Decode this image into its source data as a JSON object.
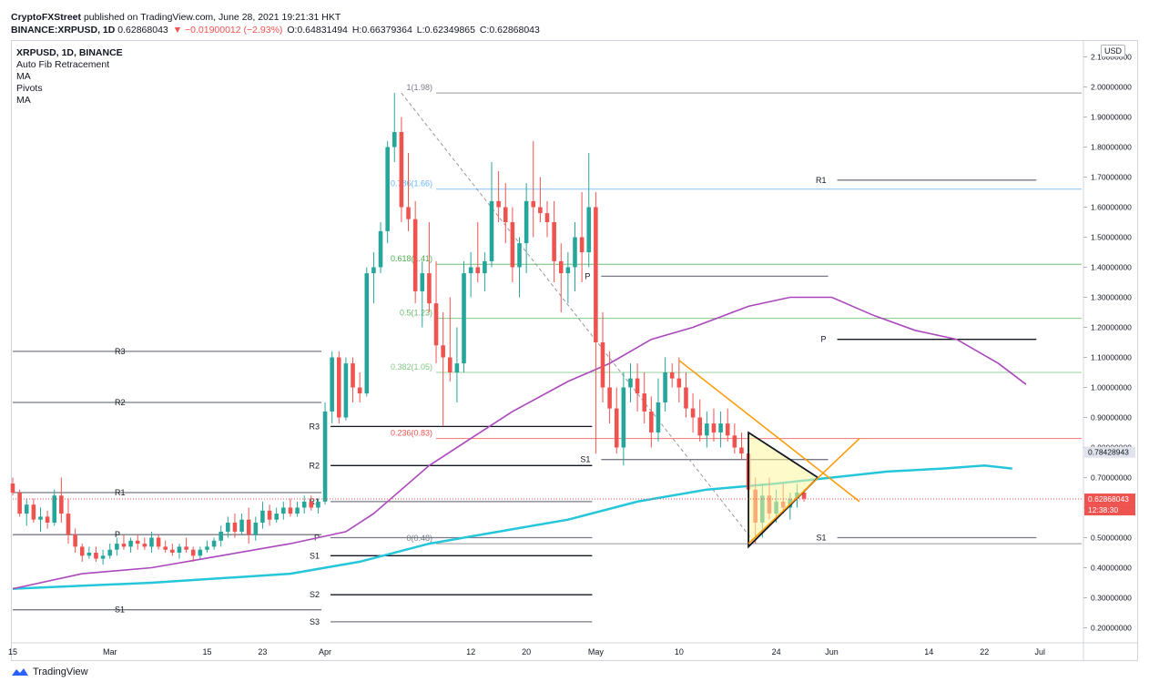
{
  "header": {
    "line1_prefix": "CryptoFXStreet",
    "line1_suffix": "published on TradingView.com, June 28, 2021 19:21:31 HKT",
    "symbol": "BINANCE:XRPUSD, 1D",
    "last": "0.62868043",
    "change": "▼ −0.01900012 (−2.93%)",
    "open": "O:0.64831494",
    "high": "H:0.66379364",
    "low": "L:0.62349865",
    "close": "C:0.62868043"
  },
  "legend": {
    "title": "XRPUSD, 1D, BINANCE",
    "items": [
      "Auto Fib Retracement",
      "MA",
      "Pivots",
      "MA"
    ]
  },
  "currency": "USD",
  "footer": {
    "brand": "TradingView"
  },
  "colors": {
    "up": "#26a69a",
    "down": "#ef5350",
    "ma_fast": "#ab47bc",
    "ma_slow": "#26c6da",
    "triangle_fill": "#fff59d",
    "orange_line": "#ff9800"
  },
  "chart_data": {
    "type": "candlestick",
    "y_axis": {
      "min": 0.15,
      "max": 2.15,
      "ticks": [
        "2.10000000",
        "2.00000000",
        "1.90000000",
        "1.80000000",
        "1.70000000",
        "1.60000000",
        "1.50000000",
        "1.40000000",
        "1.30000000",
        "1.20000000",
        "1.10000000",
        "1.00000000",
        "0.90000000",
        "0.80000000",
        "0.70000000",
        "0.60000000",
        "0.50000000",
        "0.40000000",
        "0.30000000",
        "0.20000000"
      ],
      "tick_values": [
        2.1,
        2.0,
        1.9,
        1.8,
        1.7,
        1.6,
        1.5,
        1.4,
        1.3,
        1.2,
        1.1,
        1.0,
        0.9,
        0.8,
        0.7,
        0.6,
        0.5,
        0.4,
        0.3,
        0.2
      ]
    },
    "x_axis": {
      "labels": [
        "15",
        "Mar",
        "15",
        "23",
        "Apr",
        "12",
        "20",
        "May",
        "10",
        "24",
        "Jun",
        "14",
        "22",
        "Jul"
      ],
      "label_days": [
        0,
        14,
        28,
        36,
        45,
        66,
        74,
        84,
        96,
        110,
        118,
        132,
        140,
        148
      ]
    },
    "price_labels": [
      {
        "value": 0.78428943,
        "text": "0.78428943",
        "bg": "#e0e3eb",
        "fg": "#131722"
      },
      {
        "value": 0.62868043,
        "text": "0.62868043",
        "bg": "#ef5350",
        "fg": "#ffffff"
      },
      {
        "value": 0.6,
        "text": "12:38:30",
        "bg": "#ef5350",
        "fg": "#ffffff"
      }
    ],
    "fib_levels": [
      {
        "label": "1(1.98)",
        "value": 1.98,
        "color": "#787b86"
      },
      {
        "label": "0.786(1.66)",
        "value": 1.66,
        "color": "#64b5f6"
      },
      {
        "label": "0.618(1.41)",
        "value": 1.41,
        "color": "#4caf50"
      },
      {
        "label": "0.5(1.23)",
        "value": 1.23,
        "color": "#66bb6a"
      },
      {
        "label": "0.382(1.05)",
        "value": 1.05,
        "color": "#81c784"
      },
      {
        "label": "0.236(0.83)",
        "value": 0.83,
        "color": "#ef5350"
      },
      {
        "label": "0(0.48)",
        "value": 0.48,
        "color": "#787b86"
      }
    ],
    "pivots": [
      {
        "label": "R3",
        "value": 1.12,
        "d0": 0,
        "d1": 45,
        "color": "#787b86"
      },
      {
        "label": "R2",
        "value": 0.95,
        "d0": 0,
        "d1": 45,
        "color": "#787b86"
      },
      {
        "label": "R1",
        "value": 0.65,
        "d0": 0,
        "d1": 45,
        "color": "#787b86"
      },
      {
        "label": "P",
        "value": 0.51,
        "d0": 0,
        "d1": 45,
        "color": "#787b86"
      },
      {
        "label": "S1",
        "value": 0.26,
        "d0": 0,
        "d1": 45,
        "color": "#787b86"
      },
      {
        "label": "R3",
        "value": 0.87,
        "d0": 45,
        "d1": 84,
        "color": "#131722"
      },
      {
        "label": "R2",
        "value": 0.74,
        "d0": 45,
        "d1": 84,
        "color": "#131722"
      },
      {
        "label": "R1",
        "value": 0.62,
        "d0": 45,
        "d1": 84,
        "color": "#787b86"
      },
      {
        "label": "P",
        "value": 0.5,
        "d0": 45,
        "d1": 84,
        "color": "#787b86"
      },
      {
        "label": "S1",
        "value": 0.44,
        "d0": 45,
        "d1": 84,
        "color": "#131722"
      },
      {
        "label": "S2",
        "value": 0.31,
        "d0": 45,
        "d1": 84,
        "color": "#131722"
      },
      {
        "label": "S3",
        "value": 0.22,
        "d0": 45,
        "d1": 84,
        "color": "#787b86"
      },
      {
        "label": "P",
        "value": 1.37,
        "d0": 84,
        "d1": 118,
        "color": "#787b86"
      },
      {
        "label": "S1",
        "value": 0.76,
        "d0": 84,
        "d1": 118,
        "color": "#787b86"
      },
      {
        "label": "R1",
        "value": 1.69,
        "d0": 118,
        "d1": 148,
        "color": "#787b86"
      },
      {
        "label": "P",
        "value": 1.16,
        "d0": 118,
        "d1": 148,
        "color": "#131722"
      },
      {
        "label": "S1",
        "value": 0.5,
        "d0": 118,
        "d1": 148,
        "color": "#787b86"
      }
    ],
    "ma_fast": [
      [
        0,
        0.33
      ],
      [
        10,
        0.38
      ],
      [
        20,
        0.4
      ],
      [
        30,
        0.44
      ],
      [
        40,
        0.48
      ],
      [
        48,
        0.52
      ],
      [
        52,
        0.58
      ],
      [
        56,
        0.66
      ],
      [
        60,
        0.74
      ],
      [
        66,
        0.83
      ],
      [
        72,
        0.92
      ],
      [
        80,
        1.02
      ],
      [
        86,
        1.08
      ],
      [
        92,
        1.16
      ],
      [
        98,
        1.2
      ],
      [
        106,
        1.27
      ],
      [
        112,
        1.3
      ],
      [
        118,
        1.3
      ],
      [
        124,
        1.24
      ],
      [
        130,
        1.19
      ],
      [
        136,
        1.16
      ],
      [
        142,
        1.08
      ],
      [
        146,
        1.01
      ]
    ],
    "ma_slow": [
      [
        0,
        0.33
      ],
      [
        20,
        0.35
      ],
      [
        40,
        0.38
      ],
      [
        50,
        0.42
      ],
      [
        60,
        0.48
      ],
      [
        70,
        0.52
      ],
      [
        80,
        0.56
      ],
      [
        90,
        0.62
      ],
      [
        100,
        0.66
      ],
      [
        110,
        0.68
      ],
      [
        118,
        0.7
      ],
      [
        126,
        0.72
      ],
      [
        134,
        0.73
      ],
      [
        140,
        0.74
      ],
      [
        144,
        0.73
      ]
    ],
    "candles": [
      [
        0,
        0.68,
        0.7,
        0.64,
        0.65
      ],
      [
        1,
        0.65,
        0.66,
        0.57,
        0.58
      ],
      [
        2,
        0.58,
        0.63,
        0.54,
        0.61
      ],
      [
        3,
        0.61,
        0.63,
        0.55,
        0.56
      ],
      [
        4,
        0.56,
        0.6,
        0.52,
        0.57
      ],
      [
        5,
        0.57,
        0.59,
        0.53,
        0.55
      ],
      [
        6,
        0.55,
        0.66,
        0.54,
        0.64
      ],
      [
        7,
        0.64,
        0.7,
        0.55,
        0.58
      ],
      [
        8,
        0.58,
        0.63,
        0.48,
        0.51
      ],
      [
        9,
        0.51,
        0.53,
        0.45,
        0.47
      ],
      [
        10,
        0.47,
        0.48,
        0.42,
        0.44
      ],
      [
        11,
        0.44,
        0.47,
        0.43,
        0.45
      ],
      [
        12,
        0.45,
        0.47,
        0.42,
        0.43
      ],
      [
        13,
        0.43,
        0.46,
        0.41,
        0.44
      ],
      [
        14,
        0.44,
        0.48,
        0.43,
        0.46
      ],
      [
        15,
        0.46,
        0.5,
        0.44,
        0.48
      ],
      [
        16,
        0.48,
        0.51,
        0.46,
        0.47
      ],
      [
        17,
        0.47,
        0.5,
        0.45,
        0.49
      ],
      [
        18,
        0.49,
        0.51,
        0.46,
        0.48
      ],
      [
        19,
        0.48,
        0.5,
        0.46,
        0.47
      ],
      [
        20,
        0.47,
        0.52,
        0.45,
        0.5
      ],
      [
        21,
        0.5,
        0.51,
        0.46,
        0.47
      ],
      [
        22,
        0.47,
        0.49,
        0.45,
        0.46
      ],
      [
        23,
        0.46,
        0.48,
        0.44,
        0.45
      ],
      [
        24,
        0.45,
        0.48,
        0.43,
        0.47
      ],
      [
        25,
        0.47,
        0.5,
        0.45,
        0.46
      ],
      [
        26,
        0.46,
        0.47,
        0.42,
        0.44
      ],
      [
        27,
        0.44,
        0.47,
        0.43,
        0.46
      ],
      [
        28,
        0.46,
        0.49,
        0.45,
        0.47
      ],
      [
        29,
        0.47,
        0.5,
        0.46,
        0.49
      ],
      [
        30,
        0.49,
        0.54,
        0.47,
        0.52
      ],
      [
        31,
        0.52,
        0.57,
        0.5,
        0.55
      ],
      [
        32,
        0.55,
        0.58,
        0.5,
        0.52
      ],
      [
        33,
        0.52,
        0.58,
        0.51,
        0.56
      ],
      [
        34,
        0.56,
        0.6,
        0.48,
        0.51
      ],
      [
        35,
        0.51,
        0.57,
        0.49,
        0.55
      ],
      [
        36,
        0.55,
        0.62,
        0.53,
        0.59
      ],
      [
        37,
        0.59,
        0.61,
        0.54,
        0.56
      ],
      [
        38,
        0.56,
        0.6,
        0.55,
        0.58
      ],
      [
        39,
        0.58,
        0.62,
        0.56,
        0.6
      ],
      [
        40,
        0.6,
        0.63,
        0.57,
        0.58
      ],
      [
        41,
        0.58,
        0.62,
        0.57,
        0.6
      ],
      [
        42,
        0.6,
        0.64,
        0.58,
        0.62
      ],
      [
        43,
        0.62,
        0.64,
        0.59,
        0.6
      ],
      [
        44,
        0.6,
        0.63,
        0.58,
        0.62
      ],
      [
        45,
        0.62,
        0.95,
        0.61,
        0.92
      ],
      [
        46,
        0.92,
        1.12,
        0.88,
        1.1
      ],
      [
        47,
        1.1,
        1.12,
        0.88,
        0.9
      ],
      [
        48,
        0.9,
        1.1,
        0.89,
        1.08
      ],
      [
        49,
        1.08,
        1.1,
        0.95,
        1.0
      ],
      [
        50,
        1.0,
        1.05,
        0.95,
        0.98
      ],
      [
        51,
        0.98,
        1.4,
        0.97,
        1.38
      ],
      [
        52,
        1.38,
        1.45,
        1.28,
        1.4
      ],
      [
        53,
        1.4,
        1.55,
        1.38,
        1.52
      ],
      [
        54,
        1.52,
        1.82,
        1.48,
        1.8
      ],
      [
        55,
        1.8,
        1.98,
        1.75,
        1.85
      ],
      [
        56,
        1.85,
        1.9,
        1.55,
        1.6
      ],
      [
        57,
        1.6,
        1.78,
        1.52,
        1.56
      ],
      [
        58,
        1.56,
        1.62,
        1.28,
        1.32
      ],
      [
        59,
        1.32,
        1.42,
        1.2,
        1.38
      ],
      [
        60,
        1.38,
        1.55,
        1.25,
        1.28
      ],
      [
        61,
        1.28,
        1.42,
        1.08,
        1.14
      ],
      [
        62,
        1.14,
        1.25,
        0.87,
        1.1
      ],
      [
        63,
        1.1,
        1.3,
        1.02,
        1.05
      ],
      [
        64,
        1.05,
        1.2,
        0.95,
        1.08
      ],
      [
        65,
        1.08,
        1.42,
        1.05,
        1.38
      ],
      [
        66,
        1.38,
        1.45,
        1.3,
        1.4
      ],
      [
        67,
        1.4,
        1.55,
        1.35,
        1.38
      ],
      [
        68,
        1.38,
        1.45,
        1.32,
        1.42
      ],
      [
        69,
        1.42,
        1.75,
        1.4,
        1.62
      ],
      [
        70,
        1.62,
        1.72,
        1.55,
        1.6
      ],
      [
        71,
        1.6,
        1.68,
        1.48,
        1.55
      ],
      [
        72,
        1.55,
        1.6,
        1.35,
        1.4
      ],
      [
        73,
        1.4,
        1.5,
        1.3,
        1.48
      ],
      [
        74,
        1.48,
        1.68,
        1.38,
        1.62
      ],
      [
        75,
        1.62,
        1.82,
        1.5,
        1.6
      ],
      [
        76,
        1.6,
        1.7,
        1.55,
        1.58
      ],
      [
        77,
        1.58,
        1.62,
        1.5,
        1.55
      ],
      [
        78,
        1.55,
        1.62,
        1.35,
        1.42
      ],
      [
        79,
        1.42,
        1.48,
        1.25,
        1.38
      ],
      [
        80,
        1.38,
        1.45,
        1.28,
        1.4
      ],
      [
        81,
        1.4,
        1.55,
        1.32,
        1.5
      ],
      [
        82,
        1.5,
        1.65,
        1.35,
        1.45
      ],
      [
        83,
        1.45,
        1.78,
        1.4,
        1.6
      ],
      [
        84,
        1.6,
        1.65,
        0.78,
        1.15
      ],
      [
        85,
        1.15,
        1.25,
        0.95,
        1.0
      ],
      [
        86,
        1.0,
        1.12,
        0.88,
        0.93
      ],
      [
        87,
        0.93,
        1.0,
        0.78,
        0.8
      ],
      [
        88,
        0.8,
        1.05,
        0.74,
        1.0
      ],
      [
        89,
        1.0,
        1.08,
        0.95,
        1.03
      ],
      [
        90,
        1.03,
        1.08,
        0.92,
        0.98
      ],
      [
        91,
        0.98,
        1.05,
        0.88,
        0.92
      ],
      [
        92,
        0.92,
        0.97,
        0.8,
        0.85
      ],
      [
        93,
        0.85,
        1.03,
        0.82,
        0.95
      ],
      [
        94,
        0.95,
        1.1,
        0.92,
        1.05
      ],
      [
        95,
        1.05,
        1.08,
        1.0,
        1.03
      ],
      [
        96,
        1.03,
        1.1,
        0.95,
        1.0
      ],
      [
        97,
        1.0,
        1.05,
        0.9,
        0.93
      ],
      [
        98,
        0.93,
        0.98,
        0.85,
        0.9
      ],
      [
        99,
        0.9,
        0.96,
        0.82,
        0.84
      ],
      [
        100,
        0.84,
        0.92,
        0.8,
        0.88
      ],
      [
        101,
        0.88,
        0.93,
        0.82,
        0.85
      ],
      [
        102,
        0.85,
        0.92,
        0.8,
        0.88
      ],
      [
        103,
        0.88,
        0.93,
        0.82,
        0.84
      ],
      [
        104,
        0.84,
        0.88,
        0.78,
        0.8
      ],
      [
        105,
        0.8,
        0.85,
        0.76,
        0.78
      ],
      [
        106,
        0.78,
        0.82,
        0.64,
        0.66
      ],
      [
        107,
        0.66,
        0.7,
        0.48,
        0.55
      ],
      [
        108,
        0.55,
        0.68,
        0.5,
        0.64
      ],
      [
        109,
        0.64,
        0.7,
        0.56,
        0.58
      ],
      [
        110,
        0.58,
        0.66,
        0.55,
        0.62
      ],
      [
        111,
        0.62,
        0.68,
        0.58,
        0.6
      ],
      [
        112,
        0.6,
        0.65,
        0.56,
        0.63
      ],
      [
        113,
        0.63,
        0.68,
        0.6,
        0.65
      ],
      [
        114,
        0.65,
        0.66,
        0.62,
        0.63
      ]
    ],
    "triangle": [
      [
        106,
        0.85
      ],
      [
        106,
        0.47
      ],
      [
        116,
        0.7
      ]
    ],
    "orange_lines": [
      [
        [
          96,
          1.09
        ],
        [
          122,
          0.62
        ]
      ],
      [
        [
          106,
          0.48
        ],
        [
          122,
          0.83
        ]
      ]
    ],
    "dashed_line": [
      [
        56,
        1.98
      ],
      [
        107,
        0.48
      ]
    ]
  }
}
